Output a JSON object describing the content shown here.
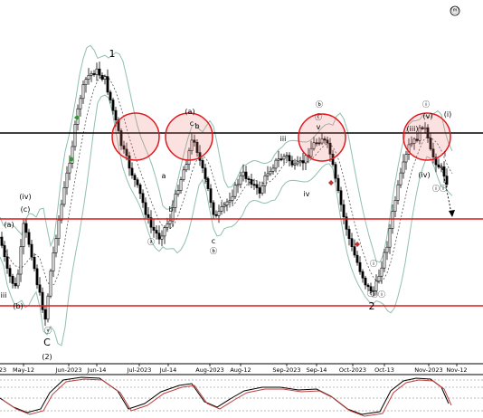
{
  "chart_data": {
    "type": "candlestick",
    "x_axis": {
      "tick_labels": [
        "May-12",
        "Jun-2023",
        "Jun-14",
        "Jul-2023",
        "Jul-14",
        "Aug-2023",
        "Aug-12",
        "Sep-2023",
        "Sep-14",
        "Oct-2023",
        "Oct-13",
        "Nov-2023",
        "Nov-12"
      ],
      "partial_left_label": "23"
    },
    "horizontal_lines": [
      {
        "color": "#000000",
        "role": "black resistance line",
        "level_fraction": 0.68
      },
      {
        "color": "#e0191e",
        "role": "upper red support line",
        "level_fraction": 0.47
      },
      {
        "color": "#e0191e",
        "role": "lower red support line",
        "level_fraction": 0.15
      }
    ],
    "circled_resistance_zones": 4,
    "wave_labels": [
      {
        "text": "1"
      },
      {
        "text": "(a)"
      },
      {
        "text": "c"
      },
      {
        "text": "b"
      },
      {
        "text": "a"
      },
      {
        "text": "ⓑ"
      },
      {
        "text": "ⓒ"
      },
      {
        "text": "v"
      },
      {
        "text": "iii"
      },
      {
        "text": "iv"
      },
      {
        "text": "ⓐ"
      },
      {
        "text": "c"
      },
      {
        "text": "ⓑ"
      },
      {
        "text": "a"
      },
      {
        "text": "b"
      },
      {
        "text": "(a)"
      },
      {
        "text": "(c)"
      },
      {
        "text": "(iv)"
      },
      {
        "text": "(b)"
      },
      {
        "text": "iii"
      },
      {
        "text": "ⓥ"
      },
      {
        "text": "C"
      },
      {
        "text": "(2)"
      },
      {
        "text": "ⓘ"
      },
      {
        "text": "ⓒ"
      },
      {
        "text": "ⓘⓘ"
      },
      {
        "text": "2"
      },
      {
        "text": "ⓘ"
      },
      {
        "text": "(i)"
      },
      {
        "text": "(iii)"
      },
      {
        "text": "(v)"
      },
      {
        "text": "(iv)"
      },
      {
        "text": "i"
      },
      {
        "text": "ⓘⓘ"
      },
      {
        "text": "ⓜ"
      }
    ],
    "oscillator": {
      "type": "stochastic",
      "series": [
        {
          "color": "#000000"
        },
        {
          "color": "#c04040"
        }
      ]
    },
    "colors": {
      "candle_up": "#ffffff",
      "candle_down": "#000000",
      "bollinger": "#8fbfb0",
      "middle_band": "#555555",
      "resistance": "#000000",
      "support": "#e0191e",
      "circle": "#e0191e",
      "arrow": "#000000",
      "up_marker": "#2e9a2e",
      "down_marker": "#c03030"
    }
  }
}
